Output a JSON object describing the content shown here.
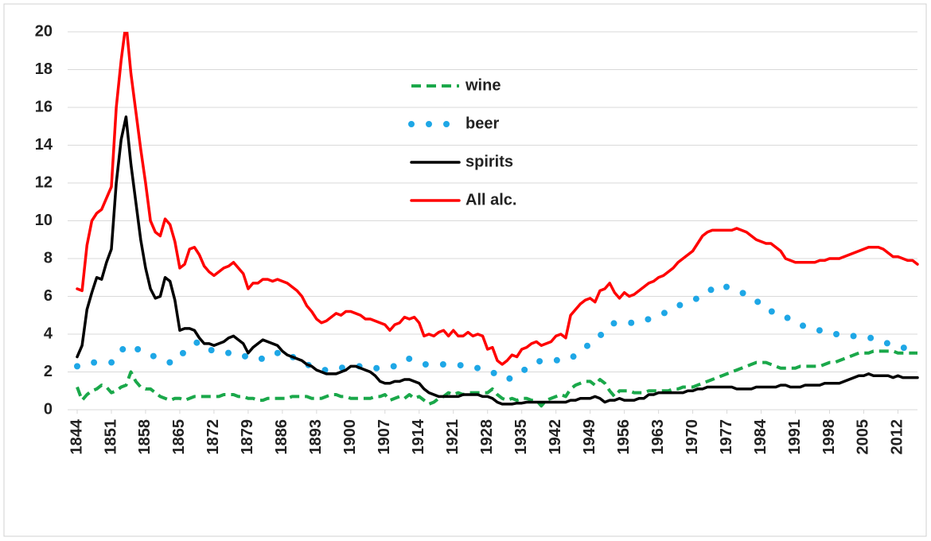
{
  "chart_data": {
    "type": "line",
    "x": [
      1844,
      1845,
      1846,
      1847,
      1848,
      1849,
      1850,
      1851,
      1852,
      1853,
      1854,
      1855,
      1856,
      1857,
      1858,
      1859,
      1860,
      1861,
      1862,
      1863,
      1864,
      1865,
      1866,
      1867,
      1868,
      1869,
      1870,
      1871,
      1872,
      1873,
      1874,
      1875,
      1876,
      1877,
      1878,
      1879,
      1880,
      1881,
      1882,
      1883,
      1884,
      1885,
      1886,
      1887,
      1888,
      1889,
      1890,
      1891,
      1892,
      1893,
      1894,
      1895,
      1896,
      1897,
      1898,
      1899,
      1900,
      1901,
      1902,
      1903,
      1904,
      1905,
      1906,
      1907,
      1908,
      1909,
      1910,
      1911,
      1912,
      1913,
      1914,
      1915,
      1916,
      1917,
      1918,
      1919,
      1920,
      1921,
      1922,
      1923,
      1924,
      1925,
      1926,
      1927,
      1928,
      1929,
      1930,
      1931,
      1932,
      1933,
      1934,
      1935,
      1936,
      1937,
      1938,
      1939,
      1940,
      1941,
      1942,
      1943,
      1944,
      1945,
      1946,
      1947,
      1948,
      1949,
      1950,
      1951,
      1952,
      1953,
      1954,
      1955,
      1956,
      1957,
      1958,
      1959,
      1960,
      1961,
      1962,
      1963,
      1964,
      1965,
      1966,
      1967,
      1968,
      1969,
      1970,
      1971,
      1972,
      1973,
      1974,
      1975,
      1976,
      1977,
      1978,
      1979,
      1980,
      1981,
      1982,
      1983,
      1984,
      1985,
      1986,
      1987,
      1988,
      1989,
      1990,
      1991,
      1992,
      1993,
      1994,
      1995,
      1996,
      1997,
      1998,
      1999,
      2000,
      2001,
      2002,
      2003,
      2004,
      2005,
      2006,
      2007,
      2008,
      2009,
      2010,
      2011,
      2012,
      2013,
      2014,
      2015,
      2016
    ],
    "series": [
      {
        "name": "wine",
        "color": "#1aa84a",
        "line_style": "dashed",
        "values": [
          1.2,
          0.5,
          0.8,
          1.0,
          1.1,
          1.3,
          1.2,
          0.9,
          1.0,
          1.2,
          1.3,
          2.0,
          1.5,
          1.2,
          1.1,
          1.1,
          0.9,
          0.7,
          0.6,
          0.5,
          0.6,
          0.6,
          0.5,
          0.6,
          0.7,
          0.7,
          0.7,
          0.7,
          0.7,
          0.7,
          0.8,
          0.8,
          0.8,
          0.7,
          0.7,
          0.6,
          0.6,
          0.5,
          0.5,
          0.6,
          0.6,
          0.6,
          0.6,
          0.6,
          0.7,
          0.7,
          0.7,
          0.7,
          0.6,
          0.6,
          0.6,
          0.7,
          0.8,
          0.8,
          0.7,
          0.7,
          0.6,
          0.6,
          0.6,
          0.6,
          0.6,
          0.7,
          0.7,
          0.8,
          0.5,
          0.6,
          0.7,
          0.6,
          0.8,
          0.6,
          0.7,
          0.5,
          0.3,
          0.4,
          0.6,
          0.7,
          0.9,
          0.8,
          0.9,
          0.8,
          0.9,
          0.9,
          0.9,
          0.9,
          0.9,
          1.1,
          0.8,
          0.6,
          0.5,
          0.6,
          0.5,
          0.6,
          0.6,
          0.5,
          0.5,
          0.2,
          0.5,
          0.6,
          0.7,
          0.8,
          0.7,
          1.1,
          1.3,
          1.4,
          1.5,
          1.5,
          1.3,
          1.6,
          1.4,
          1.0,
          0.7,
          1.0,
          1.0,
          1.0,
          0.9,
          0.9,
          0.9,
          1.0,
          1.0,
          1.0,
          1.0,
          1.0,
          1.1,
          1.1,
          1.2,
          1.2,
          1.2,
          1.3,
          1.4,
          1.5,
          1.6,
          1.7,
          1.8,
          1.9,
          2.0,
          2.1,
          2.2,
          2.3,
          2.4,
          2.5,
          2.5,
          2.5,
          2.4,
          2.3,
          2.2,
          2.2,
          2.2,
          2.2,
          2.3,
          2.3,
          2.3,
          2.3,
          2.3,
          2.4,
          2.5,
          2.5,
          2.6,
          2.7,
          2.8,
          2.9,
          3.0,
          3.0,
          3.0,
          3.1,
          3.1,
          3.1,
          3.1,
          3.1,
          3.0,
          3.0,
          3.0,
          3.0,
          3.0
        ]
      },
      {
        "name": "beer",
        "color": "#1ea7e6",
        "line_style": "dotted",
        "values": [
          2.3,
          2.3,
          2.4,
          2.5,
          2.5,
          2.5,
          2.5,
          2.5,
          2.7,
          3.1,
          3.4,
          3.3,
          3.2,
          3.2,
          3.0,
          2.9,
          2.8,
          2.7,
          2.6,
          2.5,
          2.5,
          2.8,
          3.1,
          3.3,
          3.5,
          3.6,
          3.4,
          3.2,
          3.1,
          3.1,
          3.1,
          3.0,
          3.0,
          3.0,
          2.9,
          2.7,
          2.7,
          2.7,
          2.7,
          2.7,
          2.9,
          3.0,
          3.1,
          2.9,
          2.8,
          2.7,
          2.6,
          2.4,
          2.3,
          2.2,
          2.1,
          2.1,
          2.2,
          2.2,
          2.2,
          2.3,
          2.3,
          2.3,
          2.3,
          2.3,
          2.2,
          2.2,
          2.2,
          2.2,
          2.3,
          2.3,
          2.4,
          2.6,
          2.7,
          2.6,
          2.5,
          2.4,
          2.4,
          2.4,
          2.4,
          2.4,
          2.4,
          2.4,
          2.4,
          2.3,
          2.3,
          2.3,
          2.2,
          2.2,
          2.1,
          2.0,
          1.8,
          1.7,
          1.6,
          1.7,
          1.9,
          2.0,
          2.2,
          2.4,
          2.5,
          2.6,
          2.6,
          2.6,
          2.6,
          2.7,
          2.7,
          2.7,
          2.9,
          3.1,
          3.3,
          3.5,
          3.7,
          3.9,
          4.2,
          4.4,
          4.6,
          4.6,
          4.6,
          4.6,
          4.6,
          4.7,
          4.7,
          4.8,
          4.9,
          5.0,
          5.1,
          5.2,
          5.3,
          5.5,
          5.6,
          5.7,
          5.8,
          5.9,
          6.0,
          6.2,
          6.4,
          6.6,
          6.5,
          6.5,
          6.4,
          6.3,
          6.2,
          6.1,
          6.0,
          5.8,
          5.5,
          5.3,
          5.2,
          5.2,
          5.1,
          4.9,
          4.8,
          4.6,
          4.5,
          4.4,
          4.3,
          4.2,
          4.2,
          4.1,
          4.1,
          4.0,
          4.0,
          3.9,
          3.9,
          3.9,
          3.9,
          3.8,
          3.8,
          3.8,
          3.7,
          3.6,
          3.5,
          3.4,
          3.4,
          3.3,
          3.2,
          3.1,
          3.0
        ]
      },
      {
        "name": "spirits",
        "color": "#000000",
        "line_style": "solid",
        "values": [
          2.8,
          3.4,
          5.3,
          6.2,
          7.0,
          6.9,
          7.8,
          8.5,
          12.0,
          14.3,
          15.5,
          13.0,
          11.0,
          9.0,
          7.5,
          6.4,
          5.9,
          6.0,
          7.0,
          6.8,
          5.8,
          4.2,
          4.3,
          4.3,
          4.2,
          3.8,
          3.5,
          3.5,
          3.4,
          3.5,
          3.6,
          3.8,
          3.9,
          3.7,
          3.5,
          3.0,
          3.3,
          3.5,
          3.7,
          3.6,
          3.5,
          3.4,
          3.1,
          2.9,
          2.8,
          2.7,
          2.6,
          2.4,
          2.3,
          2.1,
          2.0,
          1.9,
          1.9,
          1.9,
          2.0,
          2.1,
          2.3,
          2.3,
          2.2,
          2.1,
          2.0,
          1.8,
          1.5,
          1.4,
          1.4,
          1.5,
          1.5,
          1.6,
          1.6,
          1.5,
          1.4,
          1.1,
          0.9,
          0.8,
          0.7,
          0.7,
          0.7,
          0.7,
          0.7,
          0.8,
          0.8,
          0.8,
          0.8,
          0.7,
          0.7,
          0.6,
          0.4,
          0.3,
          0.3,
          0.3,
          0.35,
          0.35,
          0.4,
          0.4,
          0.4,
          0.4,
          0.4,
          0.4,
          0.4,
          0.4,
          0.4,
          0.5,
          0.5,
          0.6,
          0.6,
          0.6,
          0.7,
          0.6,
          0.4,
          0.5,
          0.5,
          0.6,
          0.5,
          0.5,
          0.5,
          0.6,
          0.6,
          0.8,
          0.8,
          0.9,
          0.9,
          0.9,
          0.9,
          0.9,
          0.9,
          1.0,
          1.0,
          1.1,
          1.1,
          1.2,
          1.2,
          1.2,
          1.2,
          1.2,
          1.2,
          1.1,
          1.1,
          1.1,
          1.1,
          1.2,
          1.2,
          1.2,
          1.2,
          1.2,
          1.3,
          1.3,
          1.2,
          1.2,
          1.2,
          1.3,
          1.3,
          1.3,
          1.3,
          1.4,
          1.4,
          1.4,
          1.4,
          1.5,
          1.6,
          1.7,
          1.8,
          1.8,
          1.9,
          1.8,
          1.8,
          1.8,
          1.8,
          1.7,
          1.8,
          1.7,
          1.7,
          1.7,
          1.7
        ]
      },
      {
        "name": "All alc.",
        "color": "#ff0000",
        "line_style": "solid",
        "values": [
          6.4,
          6.3,
          8.7,
          10.0,
          10.4,
          10.6,
          11.2,
          11.8,
          16.0,
          18.5,
          20.5,
          17.8,
          15.8,
          13.8,
          12.0,
          10.0,
          9.4,
          9.2,
          10.1,
          9.8,
          8.9,
          7.5,
          7.7,
          8.5,
          8.6,
          8.2,
          7.6,
          7.3,
          7.1,
          7.3,
          7.5,
          7.6,
          7.8,
          7.5,
          7.2,
          6.4,
          6.7,
          6.7,
          6.9,
          6.9,
          6.8,
          6.9,
          6.8,
          6.7,
          6.5,
          6.3,
          6.0,
          5.5,
          5.2,
          4.8,
          4.6,
          4.7,
          4.9,
          5.1,
          5.0,
          5.2,
          5.2,
          5.1,
          5.0,
          4.8,
          4.8,
          4.7,
          4.6,
          4.5,
          4.2,
          4.5,
          4.6,
          4.9,
          4.8,
          4.9,
          4.6,
          3.9,
          4.0,
          3.9,
          4.1,
          4.2,
          3.9,
          4.2,
          3.9,
          3.9,
          4.1,
          3.9,
          4.0,
          3.9,
          3.2,
          3.3,
          2.6,
          2.4,
          2.6,
          2.9,
          2.8,
          3.2,
          3.3,
          3.5,
          3.6,
          3.4,
          3.5,
          3.6,
          3.9,
          4.0,
          3.8,
          5.0,
          5.3,
          5.6,
          5.8,
          5.9,
          5.7,
          6.3,
          6.4,
          6.7,
          6.2,
          5.9,
          6.2,
          6.0,
          6.1,
          6.3,
          6.5,
          6.7,
          6.8,
          7.0,
          7.1,
          7.3,
          7.5,
          7.8,
          8.0,
          8.2,
          8.4,
          8.8,
          9.2,
          9.4,
          9.5,
          9.5,
          9.5,
          9.5,
          9.5,
          9.6,
          9.5,
          9.4,
          9.2,
          9.0,
          8.9,
          8.8,
          8.8,
          8.6,
          8.4,
          8.0,
          7.9,
          7.8,
          7.8,
          7.8,
          7.8,
          7.8,
          7.9,
          7.9,
          8.0,
          8.0,
          8.0,
          8.1,
          8.2,
          8.3,
          8.4,
          8.5,
          8.6,
          8.6,
          8.6,
          8.5,
          8.3,
          8.1,
          8.1,
          8.0,
          7.9,
          7.9,
          7.7
        ]
      }
    ],
    "xlim": [
      1844,
      2016
    ],
    "xticks": [
      1844,
      1851,
      1858,
      1865,
      1872,
      1879,
      1886,
      1893,
      1900,
      1907,
      1914,
      1921,
      1928,
      1935,
      1942,
      1949,
      1956,
      1963,
      1970,
      1977,
      1984,
      1991,
      1998,
      2005,
      2012
    ],
    "ylim": [
      0,
      20
    ],
    "yticks": [
      0,
      2,
      4,
      6,
      8,
      10,
      12,
      14,
      16,
      18,
      20
    ],
    "grid": true,
    "legend": "top"
  }
}
